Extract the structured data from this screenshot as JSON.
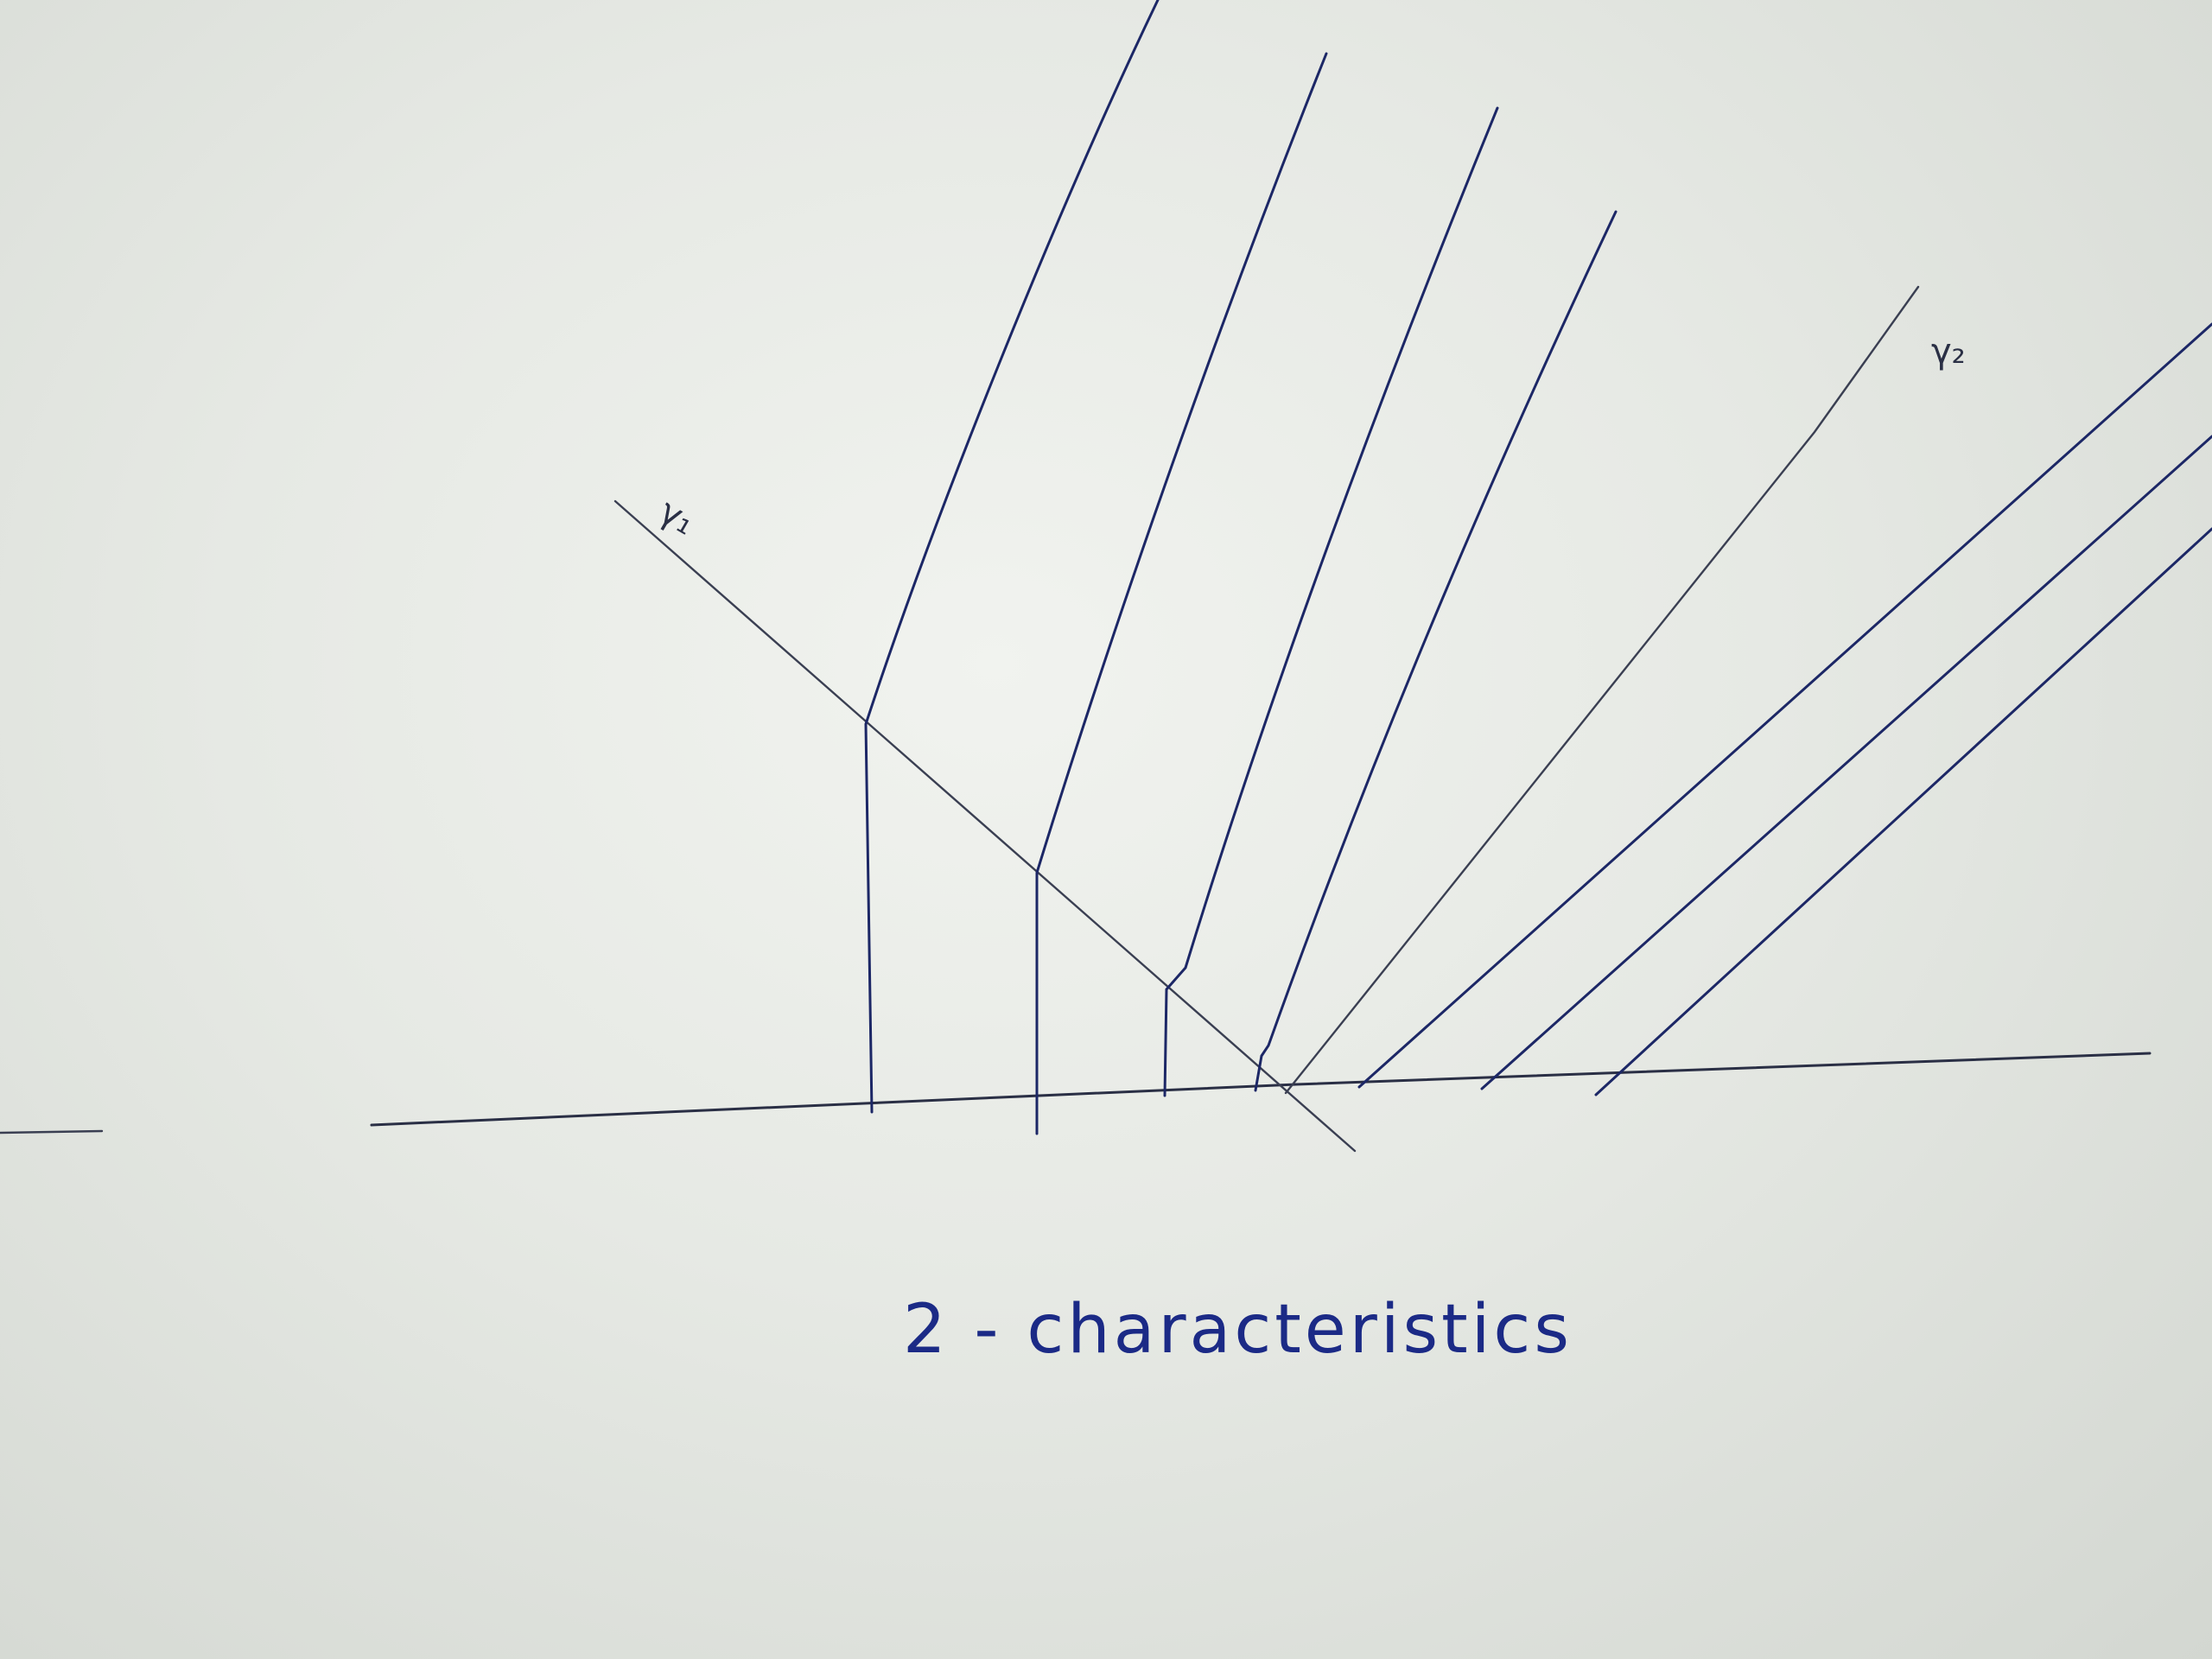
{
  "caption": "2 - characteristics",
  "labels": {
    "gamma1": "γ₁",
    "gamma2": "γ₂"
  },
  "colors": {
    "paper": "#eef0ec",
    "ink_blue": "#1c2766",
    "ink_gray": "#3a3f52"
  }
}
